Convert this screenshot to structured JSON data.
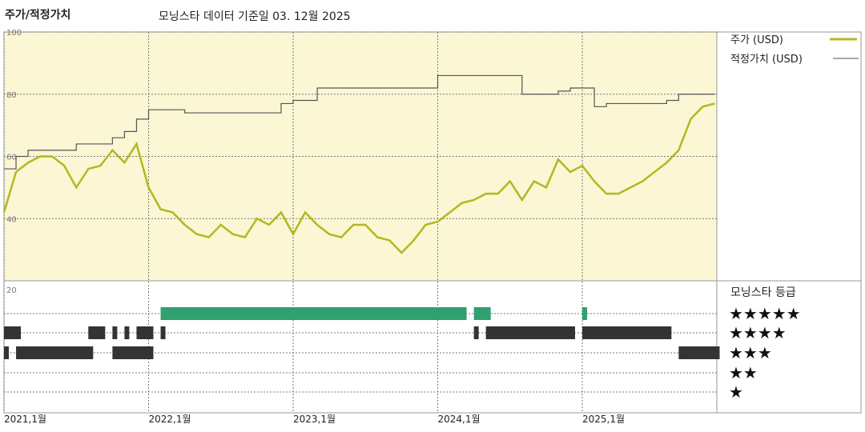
{
  "header": {
    "title": "주가/적정가치",
    "subtitle": "모닝스타 데이터 기준일 03. 12월 2025"
  },
  "colors": {
    "price": "#b5b71f",
    "fair_value": "#555555",
    "plot_bg": "#fbf6d4",
    "rating_3star_bar": "#30a070",
    "rating_bar": "#333333"
  },
  "legend": {
    "price": "주가 (USD)",
    "fair_value": "적정가치 (USD)"
  },
  "rating_panel": {
    "title": "모닝스타 등급",
    "levels": [
      "★★★★★",
      "★★★★",
      "★★★",
      "★★",
      "★"
    ]
  },
  "chart_data": [
    {
      "type": "line",
      "title": "",
      "ylim": [
        20,
        100
      ],
      "yticks": [
        "100",
        "80",
        "60",
        "40"
      ],
      "xticks": [
        "2021,1월",
        "2022,1월",
        "2023,1월",
        "2024,1월",
        "2025,1월"
      ],
      "grid": true,
      "legend_position": "right",
      "series": [
        {
          "name": "주가 (USD)",
          "x": [
            "2021-01",
            "2021-02",
            "2021-03",
            "2021-04",
            "2021-05",
            "2021-06",
            "2021-07",
            "2021-08",
            "2021-09",
            "2021-10",
            "2021-11",
            "2021-12",
            "2022-01",
            "2022-02",
            "2022-03",
            "2022-04",
            "2022-05",
            "2022-06",
            "2022-07",
            "2022-08",
            "2022-09",
            "2022-10",
            "2022-11",
            "2022-12",
            "2023-01",
            "2023-02",
            "2023-03",
            "2023-04",
            "2023-05",
            "2023-06",
            "2023-07",
            "2023-08",
            "2023-09",
            "2023-10",
            "2023-11",
            "2023-12",
            "2024-01",
            "2024-02",
            "2024-03",
            "2024-04",
            "2024-05",
            "2024-06",
            "2024-07",
            "2024-08",
            "2024-09",
            "2024-10",
            "2024-11",
            "2024-12",
            "2025-01",
            "2025-02",
            "2025-03",
            "2025-04",
            "2025-05",
            "2025-06",
            "2025-07",
            "2025-08",
            "2025-09",
            "2025-10",
            "2025-11",
            "2025-12"
          ],
          "values": [
            42,
            55,
            58,
            60,
            60,
            57,
            50,
            56,
            57,
            62,
            58,
            64,
            50,
            43,
            42,
            38,
            35,
            34,
            38,
            35,
            34,
            40,
            38,
            42,
            35,
            42,
            38,
            35,
            34,
            38,
            38,
            34,
            33,
            29,
            33,
            38,
            39,
            42,
            45,
            46,
            48,
            48,
            52,
            46,
            52,
            50,
            59,
            55,
            57,
            52,
            48,
            48,
            50,
            52,
            55,
            58,
            62,
            72,
            76,
            77
          ]
        },
        {
          "name": "적정가치 (USD)",
          "x": [
            "2021-01",
            "2021-02",
            "2021-03",
            "2021-07",
            "2021-10",
            "2021-11",
            "2021-12",
            "2022-01",
            "2022-04",
            "2022-07",
            "2022-10",
            "2022-12",
            "2023-01",
            "2023-03",
            "2023-05",
            "2023-07",
            "2023-10",
            "2023-12",
            "2024-01",
            "2024-03",
            "2024-05",
            "2024-07",
            "2024-08",
            "2024-10",
            "2024-11",
            "2024-12",
            "2025-01",
            "2025-02",
            "2025-03",
            "2025-05",
            "2025-06",
            "2025-08",
            "2025-09",
            "2025-12"
          ],
          "values": [
            56,
            60,
            62,
            64,
            66,
            68,
            72,
            75,
            74,
            74,
            74,
            77,
            78,
            82,
            82,
            82,
            82,
            82,
            86,
            86,
            86,
            86,
            80,
            80,
            81,
            82,
            82,
            76,
            77,
            77,
            77,
            78,
            80,
            80
          ]
        }
      ]
    },
    {
      "type": "heatmap",
      "title": "모닝스타 등급",
      "categories": [
        "★★★★★",
        "★★★★",
        "★★★",
        "★★",
        "★"
      ],
      "series": [
        {
          "name": "★★★",
          "periods": [
            [
              "2022-02",
              "2024-03"
            ],
            [
              "2024-04",
              "2024-05"
            ],
            [
              "2025-01",
              "2025-01"
            ]
          ]
        },
        {
          "name": "★★",
          "periods": [
            [
              "2021-01",
              "2021-02"
            ],
            [
              "2021-08",
              "2021-09"
            ],
            [
              "2021-10",
              "2021-10"
            ],
            [
              "2021-11",
              "2021-11"
            ],
            [
              "2021-12",
              "2022-01"
            ],
            [
              "2022-02",
              "2022-02"
            ],
            [
              "2024-04",
              "2024-04"
            ],
            [
              "2024-05",
              "2024-12"
            ],
            [
              "2025-01",
              "2025-01"
            ],
            [
              "2025-01",
              "2025-08"
            ]
          ]
        },
        {
          "name": "★",
          "periods": [
            [
              "2021-01",
              "2021-01"
            ],
            [
              "2021-02",
              "2021-08"
            ],
            [
              "2021-10",
              "2021-11"
            ],
            [
              "2021-11",
              "2021-12"
            ],
            [
              "2021-12",
              "2022-01"
            ],
            [
              "2025-09",
              "2025-12"
            ]
          ]
        }
      ]
    }
  ]
}
